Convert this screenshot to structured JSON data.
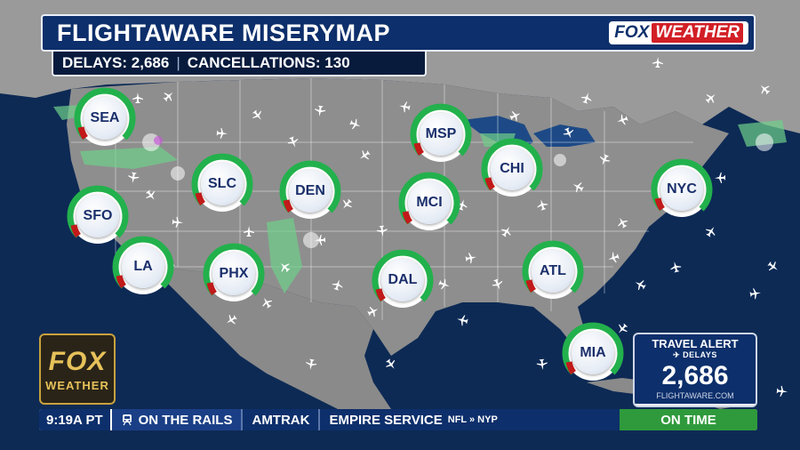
{
  "header": {
    "title": "FLIGHTAWARE MISERYMAP",
    "delays_label": "DELAYS: 2,686",
    "separator": "|",
    "cancellations_label": "CANCELLATIONS: 130"
  },
  "brand": {
    "logo_fox": "FOX",
    "logo_weather": "WEATHER",
    "side_logo_top": "FOX",
    "side_logo_bottom": "WEATHER"
  },
  "airports": [
    {
      "code": "SEA"
    },
    {
      "code": "SFO"
    },
    {
      "code": "LA"
    },
    {
      "code": "SLC"
    },
    {
      "code": "PHX"
    },
    {
      "code": "DEN"
    },
    {
      "code": "MSP"
    },
    {
      "code": "MCI"
    },
    {
      "code": "DAL"
    },
    {
      "code": "CHI"
    },
    {
      "code": "ATL"
    },
    {
      "code": "NYC"
    },
    {
      "code": "MIA"
    }
  ],
  "alert": {
    "title": "TRAVEL ALERT",
    "subtitle": "✈ DELAYS",
    "count": "2,686",
    "source": "FLIGHTAWARE.COM"
  },
  "ticker": {
    "time": "9:19A PT",
    "section": "ON THE RAILS",
    "operator": "AMTRAK",
    "route": "EMPIRE SERVICE",
    "route_detail": "NFL » NYP",
    "status": "ON TIME"
  },
  "colors": {
    "ocean": "#0d2a55",
    "land": "#8e8e8e",
    "gauge_ok": "#22b14c",
    "gauge_delay": "#c21a1a",
    "brand_navy": "#0d2f6b",
    "brand_red": "#d21f26",
    "status_green": "#2f9a3c"
  }
}
